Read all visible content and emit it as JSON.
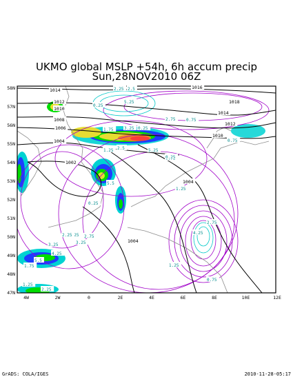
{
  "title_line1": "UKMO global MSLP +54h, 6h accum precip",
  "title_line2": "Sun,28NOV2010 06Z",
  "footer_left": "GrADS: COLA/IGES",
  "footer_right": "2010-11-28-05:17",
  "lat_labels": [
    "58N",
    "57N",
    "56N",
    "55N",
    "54N",
    "53N",
    "52N",
    "51N",
    "50N",
    "49N",
    "48N",
    "47N"
  ],
  "lon_labels": [
    "4W",
    "2W",
    "0",
    "2E",
    "4E",
    "6E",
    "8E",
    "10E",
    "12E"
  ],
  "isobar_labels": [
    "1014",
    "1012",
    "1010",
    "1008",
    "1006",
    "1004",
    "1002",
    "1016",
    "1018",
    "1014",
    "1012",
    "1010",
    "1004",
    "1004"
  ],
  "precip_labels": [
    "2.25",
    "2.5",
    "5.25",
    "0.25",
    "3.25",
    "0.75",
    "2.75",
    "1.75",
    "0.25",
    "5.25",
    "0.75",
    "1.25",
    "2.5",
    "0.25",
    "1.25",
    "2.25",
    "3.25",
    "4.25",
    "5.5",
    "2.25",
    "1.75",
    "2.75",
    "0.75",
    "4.25",
    "1.25",
    "2.25",
    "5.5",
    "3.25",
    "1.25",
    "0.25",
    "0.75",
    "2.75"
  ],
  "colors": {
    "isobar": "#000000",
    "contour_purple": "#a000c8",
    "contour_magenta": "#c800c8",
    "contour_cyan": "#00c8c8",
    "coast": "#8c8c8c",
    "precip_light": "#00d2d2",
    "precip_blue": "#1e3cff",
    "precip_green": "#00dc00",
    "precip_yellow": "#e6dc32",
    "precip_orange": "#f08228",
    "precip_red": "#fa3c3c"
  }
}
